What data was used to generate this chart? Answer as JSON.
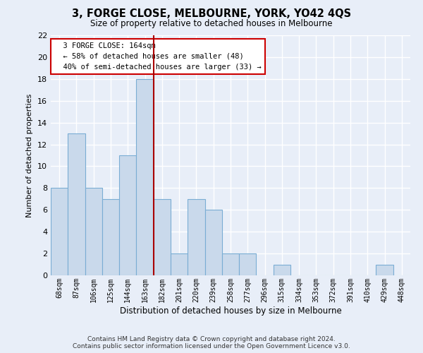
{
  "title": "3, FORGE CLOSE, MELBOURNE, YORK, YO42 4QS",
  "subtitle": "Size of property relative to detached houses in Melbourne",
  "xlabel": "Distribution of detached houses by size in Melbourne",
  "ylabel": "Number of detached properties",
  "categories": [
    "68sqm",
    "87sqm",
    "106sqm",
    "125sqm",
    "144sqm",
    "163sqm",
    "182sqm",
    "201sqm",
    "220sqm",
    "239sqm",
    "258sqm",
    "277sqm",
    "296sqm",
    "315sqm",
    "334sqm",
    "353sqm",
    "372sqm",
    "391sqm",
    "410sqm",
    "429sqm",
    "448sqm"
  ],
  "values": [
    8,
    13,
    8,
    7,
    11,
    18,
    7,
    2,
    7,
    6,
    2,
    2,
    0,
    1,
    0,
    0,
    0,
    0,
    0,
    1,
    0
  ],
  "bar_color": "#c9d9eb",
  "bar_edge_color": "#7aadd4",
  "vline_x": 5.5,
  "vline_color": "#aa0000",
  "annotation_text": "  3 FORGE CLOSE: 164sqm\n  ← 58% of detached houses are smaller (48)\n  40% of semi-detached houses are larger (33) →",
  "annotation_box_color": "white",
  "annotation_box_edge_color": "#cc0000",
  "ylim": [
    0,
    22
  ],
  "yticks": [
    0,
    2,
    4,
    6,
    8,
    10,
    12,
    14,
    16,
    18,
    20,
    22
  ],
  "background_color": "#e8eef8",
  "grid_color": "white",
  "footer_line1": "Contains HM Land Registry data © Crown copyright and database right 2024.",
  "footer_line2": "Contains public sector information licensed under the Open Government Licence v3.0."
}
